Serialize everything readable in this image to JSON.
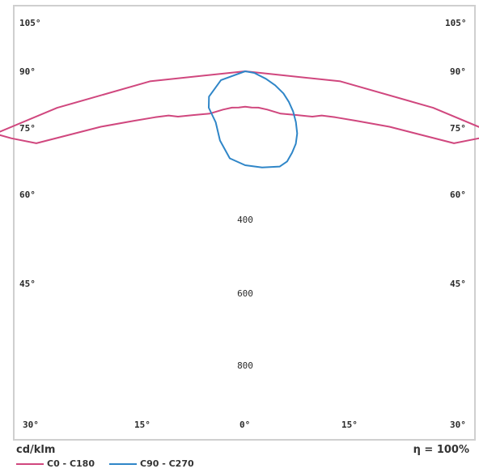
{
  "chart_data": {
    "type": "polar",
    "unit": "cd/klm",
    "efficiency": "η = 100%",
    "angle_labels_left": [
      "105°",
      "90°",
      "75°",
      "60°",
      "45°"
    ],
    "angle_labels_right": [
      "105°",
      "90°",
      "75°",
      "60°",
      "45°"
    ],
    "bottom_labels": [
      "30°",
      "15°",
      "0°",
      "15°",
      "30°"
    ],
    "radial_ticks": [
      "400",
      "600",
      "800"
    ],
    "legend": [
      {
        "name": "C0 - C180",
        "color": "#d0477e"
      },
      {
        "name": "C90 - C270",
        "color": "#2f86c8"
      }
    ],
    "series": [
      {
        "name": "C0 - C180",
        "color": "#d0477e",
        "points_deg_cd": [
          [
            -90,
            0
          ],
          [
            -84,
            260
          ],
          [
            -79,
            520
          ],
          [
            -76,
            700
          ],
          [
            -74,
            660
          ],
          [
            -71,
            600
          ],
          [
            -69,
            420
          ],
          [
            -66,
            330
          ],
          [
            -63,
            275
          ],
          [
            -60,
            240
          ],
          [
            -56,
            220
          ],
          [
            -50,
            185
          ],
          [
            -40,
            150
          ],
          [
            -30,
            120
          ],
          [
            -20,
            105
          ],
          [
            -10,
            100
          ],
          [
            0,
            96
          ],
          [
            10,
            100
          ],
          [
            20,
            105
          ],
          [
            30,
            120
          ],
          [
            40,
            150
          ],
          [
            50,
            185
          ],
          [
            56,
            220
          ],
          [
            60,
            240
          ],
          [
            63,
            275
          ],
          [
            66,
            330
          ],
          [
            69,
            420
          ],
          [
            71,
            600
          ],
          [
            74,
            660
          ],
          [
            76,
            700
          ],
          [
            79,
            520
          ],
          [
            84,
            260
          ],
          [
            90,
            0
          ]
        ]
      },
      {
        "name": "C90 - C270",
        "color": "#2f86c8",
        "points_deg_cd": [
          [
            -90,
            0
          ],
          [
            -70,
            70
          ],
          [
            -55,
            120
          ],
          [
            -45,
            140
          ],
          [
            -30,
            160
          ],
          [
            -20,
            200
          ],
          [
            -10,
            240
          ],
          [
            0,
            255
          ],
          [
            10,
            265
          ],
          [
            20,
            275
          ],
          [
            25,
            270
          ],
          [
            30,
            255
          ],
          [
            35,
            240
          ],
          [
            40,
            220
          ],
          [
            45,
            195
          ],
          [
            50,
            170
          ],
          [
            55,
            145
          ],
          [
            60,
            120
          ],
          [
            65,
            90
          ],
          [
            70,
            60
          ],
          [
            80,
            25
          ],
          [
            90,
            0
          ]
        ]
      }
    ]
  }
}
